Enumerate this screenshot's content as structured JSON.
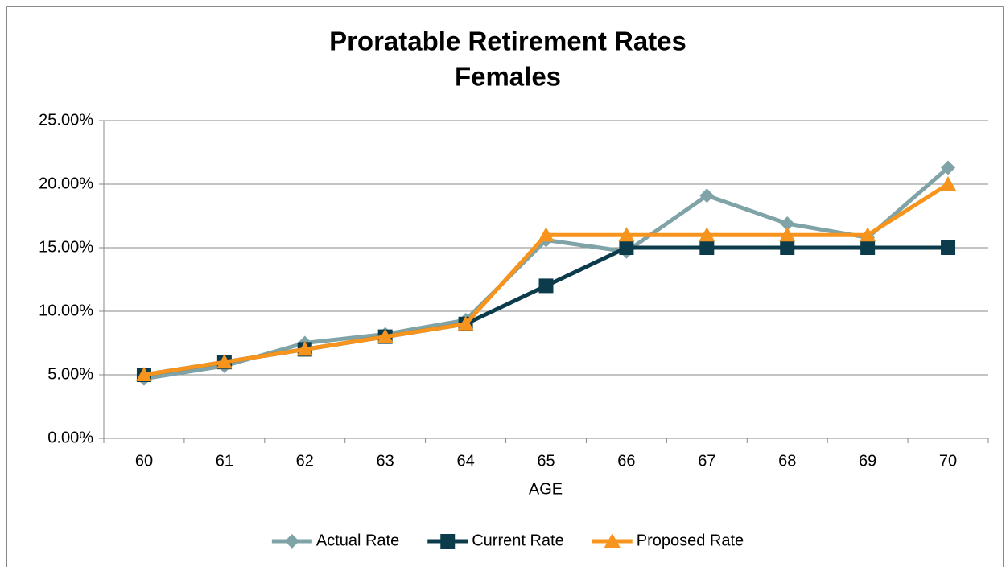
{
  "chart_data": {
    "type": "line",
    "title": "Proratable Retirement Rates",
    "subtitle": "Females",
    "x_label": "AGE",
    "categories": [
      "60",
      "61",
      "62",
      "63",
      "64",
      "65",
      "66",
      "67",
      "68",
      "69",
      "70"
    ],
    "series": [
      {
        "name": "Actual Rate",
        "color": "#7fa3a6",
        "marker": "diamond",
        "values": [
          4.7,
          5.7,
          7.5,
          8.2,
          9.3,
          15.6,
          14.7,
          19.1,
          16.9,
          15.8,
          21.3
        ]
      },
      {
        "name": "Current Rate",
        "color": "#0c3c4c",
        "marker": "square",
        "values": [
          5,
          6,
          7,
          8,
          9,
          12,
          15,
          15,
          15,
          15,
          15
        ]
      },
      {
        "name": "Proposed Rate",
        "color": "#f7941d",
        "marker": "triangle",
        "values": [
          5,
          6,
          7,
          8,
          9,
          16,
          16,
          16,
          16,
          16,
          20
        ]
      }
    ],
    "ylim": [
      0,
      25
    ],
    "yticks": [
      {
        "value": 0,
        "label": "0.00%"
      },
      {
        "value": 5,
        "label": "5.00%"
      },
      {
        "value": 10,
        "label": "10.00%"
      },
      {
        "value": 15,
        "label": "15.00%"
      },
      {
        "value": 20,
        "label": "20.00%"
      },
      {
        "value": 25,
        "label": "25.00%"
      }
    ],
    "grid": true,
    "legend": "bottom"
  }
}
